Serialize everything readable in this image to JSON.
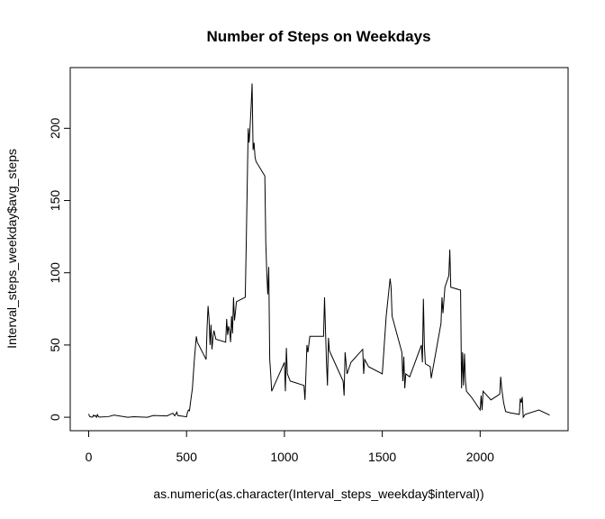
{
  "chart_data": {
    "type": "line",
    "title": "Number of Steps on Weekdays",
    "x_label": "as.numeric(as.character(Interval_steps_weekday$interval))",
    "y_label": "Interval_steps_weekday$avg_steps",
    "color": "#000000",
    "x": [
      0,
      5,
      10,
      15,
      20,
      25,
      30,
      35,
      40,
      45,
      50,
      55,
      100,
      130,
      200,
      230,
      300,
      330,
      400,
      430,
      440,
      450,
      455,
      500,
      505,
      510,
      515,
      520,
      530,
      540,
      550,
      555,
      600,
      605,
      610,
      615,
      620,
      625,
      630,
      635,
      640,
      645,
      650,
      700,
      705,
      710,
      715,
      720,
      725,
      730,
      735,
      740,
      745,
      750,
      755,
      800,
      805,
      810,
      815,
      820,
      825,
      830,
      835,
      840,
      845,
      850,
      855,
      900,
      905,
      910,
      915,
      920,
      925,
      930,
      935,
      1000,
      1005,
      1010,
      1015,
      1030,
      1055,
      1100,
      1105,
      1110,
      1115,
      1120,
      1130,
      1200,
      1205,
      1210,
      1215,
      1220,
      1225,
      1230,
      1300,
      1305,
      1310,
      1320,
      1340,
      1400,
      1405,
      1410,
      1430,
      1500,
      1505,
      1520,
      1540,
      1545,
      1550,
      1600,
      1605,
      1610,
      1615,
      1620,
      1640,
      1700,
      1705,
      1710,
      1715,
      1720,
      1745,
      1750,
      1800,
      1805,
      1810,
      1820,
      1840,
      1845,
      1850,
      1900,
      1905,
      1910,
      1915,
      1920,
      1925,
      1930,
      1955,
      2000,
      2005,
      2010,
      2015,
      2055,
      2100,
      2105,
      2110,
      2115,
      2120,
      2130,
      2155,
      2200,
      2205,
      2210,
      2215,
      2220,
      2230,
      2300,
      2355
    ],
    "values": [
      2.3,
      0.5,
      0.2,
      0.2,
      0.1,
      1.5,
      0.7,
      1.2,
      0,
      1.8,
      0.4,
      0.1,
      0.4,
      1.5,
      0,
      0.4,
      0,
      1.2,
      0.9,
      2.8,
      1,
      3.5,
      1.2,
      0.3,
      3.5,
      5,
      4.5,
      10,
      20,
      40,
      56,
      52,
      40,
      62,
      77,
      68,
      50,
      64,
      47,
      55,
      60,
      57,
      54,
      52,
      68,
      57,
      63,
      60,
      52,
      70,
      58,
      83,
      67,
      73,
      80,
      83,
      120,
      160,
      200,
      190,
      202,
      215,
      231,
      185,
      190,
      180,
      177,
      167,
      120,
      100,
      85,
      104,
      40,
      30,
      18,
      38,
      18,
      48,
      30,
      25,
      24,
      22,
      12,
      30,
      50,
      45,
      56,
      56,
      83,
      60,
      38,
      22,
      55,
      46,
      25,
      15,
      45,
      30,
      38,
      47,
      30,
      40,
      35,
      30,
      40,
      70,
      96,
      90,
      70,
      45,
      25,
      42,
      20,
      30,
      28,
      50,
      38,
      82,
      50,
      37,
      35,
      27,
      65,
      83,
      72,
      90,
      98,
      116,
      90,
      88,
      20,
      45,
      22,
      44,
      25,
      18,
      14,
      5,
      15,
      5,
      18,
      12,
      16,
      28,
      20,
      15,
      10,
      4,
      3,
      2,
      13,
      10,
      14,
      0,
      2,
      5,
      1.5
    ],
    "xlim": [
      -94.2,
      2449.2
    ],
    "ylim": [
      -9.3,
      242
    ],
    "xticks": [
      0,
      500,
      1000,
      1500,
      2000
    ],
    "yticks": [
      0,
      50,
      100,
      150,
      200
    ]
  }
}
